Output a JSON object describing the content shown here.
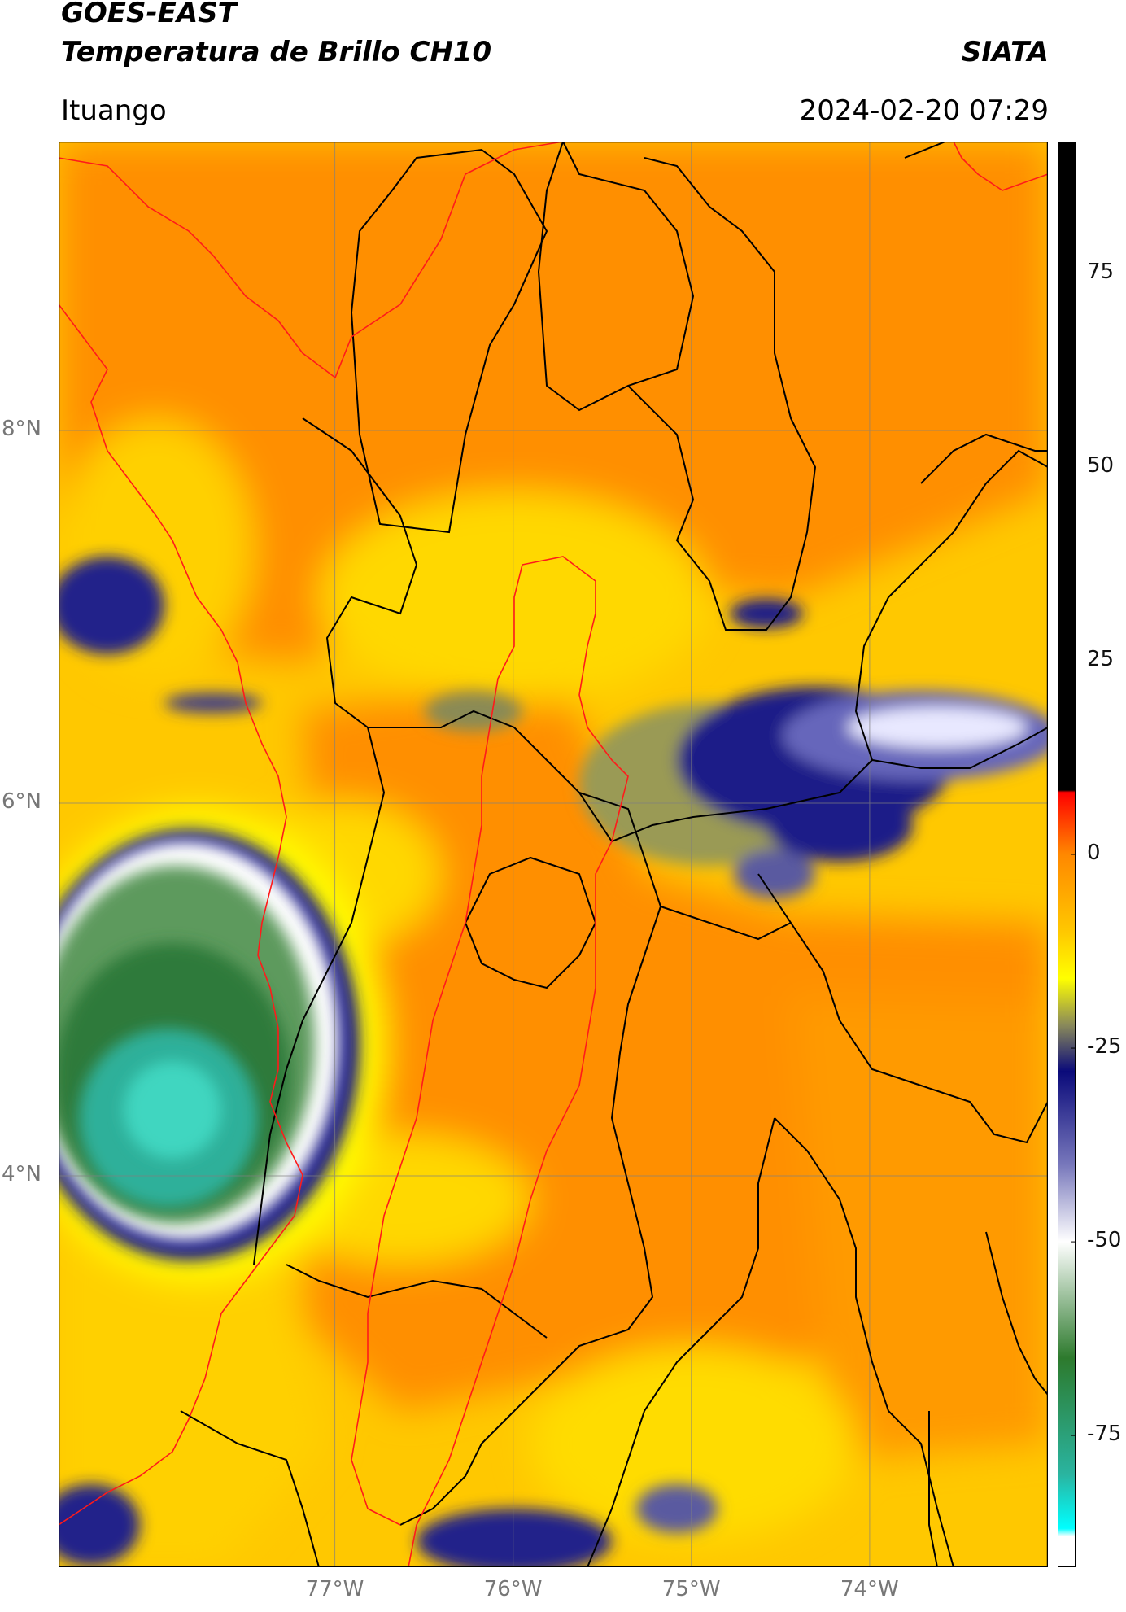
{
  "header": {
    "title_line1": "GOES-EAST",
    "title_line2": "Temperatura de Brillo CH10",
    "brand": "SIATA",
    "location": "Ituango",
    "timestamp": "2024-02-20 07:29"
  },
  "map": {
    "lat_ticks": [
      {
        "value": 8,
        "label": "8°N"
      },
      {
        "value": 6,
        "label": "6°N"
      },
      {
        "value": 4,
        "label": "4°N"
      }
    ],
    "lon_ticks": [
      {
        "value": -77,
        "label": "77°W"
      },
      {
        "value": -76,
        "label": "76°W"
      },
      {
        "value": -75,
        "label": "75°W"
      },
      {
        "value": -74,
        "label": "74°W"
      }
    ],
    "lon_range": [
      -78.55,
      -73.0
    ],
    "lat_range": [
      1.9,
      9.55
    ]
  },
  "colorbar": {
    "ticks": [
      {
        "value": 75,
        "label": "75"
      },
      {
        "value": 50,
        "label": "50"
      },
      {
        "value": 25,
        "label": "25"
      },
      {
        "value": 0,
        "label": "0"
      },
      {
        "value": -25,
        "label": "-25"
      },
      {
        "value": -50,
        "label": "-50"
      },
      {
        "value": -75,
        "label": "-75"
      }
    ],
    "range": [
      -92,
      92
    ],
    "stops": [
      {
        "value": 92,
        "color": "#000000"
      },
      {
        "value": 8.3,
        "color": "#000000"
      },
      {
        "value": 8,
        "color": "#ff0000"
      },
      {
        "value": 0,
        "color": "#ff8800"
      },
      {
        "value": -10,
        "color": "#ffc800"
      },
      {
        "value": -16,
        "color": "#ffff00"
      },
      {
        "value": -22,
        "color": "#8a8a5a"
      },
      {
        "value": -28,
        "color": "#0a0a7a"
      },
      {
        "value": -40,
        "color": "#7777bb"
      },
      {
        "value": -50,
        "color": "#ffffff"
      },
      {
        "value": -65,
        "color": "#2d7a2d"
      },
      {
        "value": -80,
        "color": "#2ab4a0"
      },
      {
        "value": -87,
        "color": "#00ffff"
      },
      {
        "value": -88,
        "color": "#ffffff"
      }
    ]
  }
}
